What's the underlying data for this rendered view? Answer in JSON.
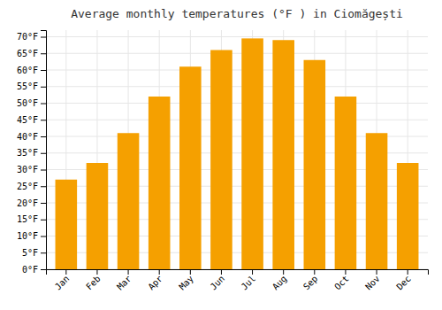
{
  "chart_data": {
    "type": "bar",
    "title": "Average monthly temperatures (°F ) in Ciomăgești",
    "categories": [
      "Jan",
      "Feb",
      "Mar",
      "Apr",
      "May",
      "Jun",
      "Jul",
      "Aug",
      "Sep",
      "Oct",
      "Nov",
      "Dec"
    ],
    "values": [
      27,
      32,
      41,
      52,
      61,
      66,
      69.5,
      69,
      63,
      52,
      41,
      32
    ],
    "color": "#F5A000",
    "ylim": [
      0,
      72
    ],
    "yticks": [
      {
        "value": 0,
        "label": "0°F"
      },
      {
        "value": 5,
        "label": "5°F"
      },
      {
        "value": 10,
        "label": "10°F"
      },
      {
        "value": 15,
        "label": "15°F"
      },
      {
        "value": 20,
        "label": "20°F"
      },
      {
        "value": 25,
        "label": "25°F"
      },
      {
        "value": 30,
        "label": "30°F"
      },
      {
        "value": 35,
        "label": "35°F"
      },
      {
        "value": 40,
        "label": "40°F"
      },
      {
        "value": 45,
        "label": "45°F"
      },
      {
        "value": 50,
        "label": "50°F"
      },
      {
        "value": 55,
        "label": "55°F"
      },
      {
        "value": 60,
        "label": "60°F"
      },
      {
        "value": 65,
        "label": "65°F"
      },
      {
        "value": 70,
        "label": "70°F"
      }
    ],
    "grid": true
  }
}
